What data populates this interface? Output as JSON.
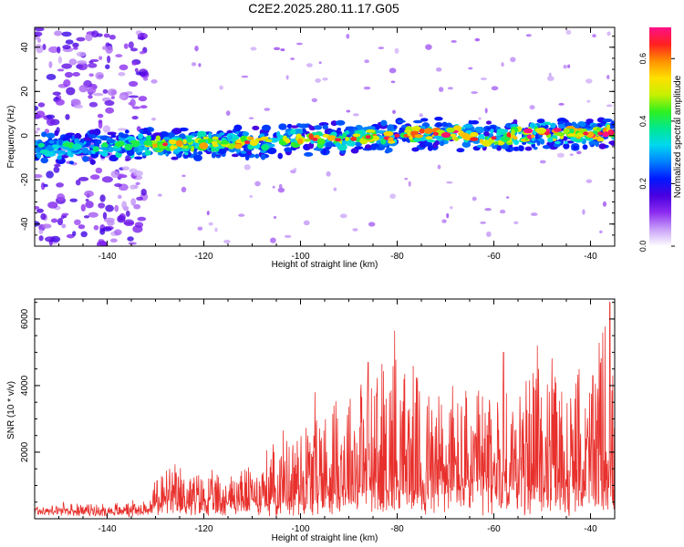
{
  "title": "C2E2.2025.280.11.17.G05",
  "colors": {
    "snr_line": "#e8302c",
    "colormap": [
      "#ffffff",
      "#c8a0f8",
      "#8c2cf0",
      "#4a00e0",
      "#0018ff",
      "#0080ff",
      "#00d8f0",
      "#00e890",
      "#30f020",
      "#c8f000",
      "#ffe000",
      "#ff9000",
      "#ff2020",
      "#ff1088"
    ]
  },
  "chart_data": [
    {
      "type": "heatmap",
      "title": "",
      "xlabel": "Height of straight line (km)",
      "ylabel": "Frequency (Hz)",
      "xlim": [
        -155,
        -35
      ],
      "ylim": [
        -50,
        49
      ],
      "xticks": [
        -140,
        -120,
        -100,
        -80,
        -60,
        -40
      ],
      "xtick_labels": [
        "-140",
        "-120",
        "-100",
        "-80",
        "-60",
        "-40"
      ],
      "yticks": [
        -40,
        -20,
        0,
        20,
        40
      ],
      "ytick_labels": [
        "-40",
        "-20",
        "0",
        "20",
        "40"
      ],
      "colorbar": {
        "label": "Normalized spectral amplitude",
        "range": [
          0,
          0.7
        ],
        "ticks": [
          0.0,
          0.2,
          0.4,
          0.6
        ],
        "tick_labels": [
          "0.0",
          "0.2",
          "0.4",
          "0.6"
        ]
      },
      "ridge": {
        "description": "narrow band of high amplitude near 0 Hz",
        "center_hz": [
          [
            -155,
            -6
          ],
          [
            -130,
            -4
          ],
          [
            -110,
            -3
          ],
          [
            -90,
            -1
          ],
          [
            -80,
            0
          ],
          [
            -70,
            1
          ],
          [
            -60,
            -1
          ],
          [
            -50,
            1
          ],
          [
            -35,
            1
          ]
        ],
        "peak_amplitude": 0.7
      },
      "noise_region": {
        "x_range": [
          -155,
          -132
        ],
        "amplitude": 0.15
      }
    },
    {
      "type": "line",
      "title": "",
      "xlabel": "Height of straight line (km)",
      "ylabel": "SNR (10 * v/v)",
      "xlim": [
        -155,
        -35
      ],
      "ylim": [
        0,
        6600
      ],
      "xticks": [
        -140,
        -120,
        -100,
        -80,
        -60,
        -40
      ],
      "xtick_labels": [
        "-140",
        "-120",
        "-100",
        "-80",
        "-60",
        "-40"
      ],
      "yticks": [
        2000,
        4000,
        6000
      ],
      "ytick_labels": [
        "2000",
        "4000",
        "6000"
      ],
      "series": [
        {
          "name": "SNR",
          "envelope_x": [
            -155,
            -140,
            -131,
            -130,
            -125,
            -120,
            -115,
            -110,
            -105,
            -100,
            -95,
            -90,
            -85,
            -80,
            -75,
            -70,
            -65,
            -60,
            -55,
            -50,
            -45,
            -40,
            -37,
            -35
          ],
          "envelope_max": [
            450,
            450,
            600,
            1600,
            1700,
            1400,
            1500,
            1800,
            2500,
            3300,
            3800,
            4600,
            4600,
            5600,
            4300,
            4500,
            4100,
            4200,
            4400,
            5200,
            4400,
            4800,
            6500,
            4300
          ],
          "baseline": [
            200,
            200,
            250,
            500,
            500,
            500,
            500,
            500,
            600,
            700,
            700,
            800,
            800,
            800,
            800,
            800,
            800,
            800,
            800,
            900,
            900,
            900,
            900,
            800
          ],
          "peaks": [
            {
              "x": -80.5,
              "y": 5650
            },
            {
              "x": -36,
              "y": 6500
            },
            {
              "x": -51,
              "y": 5200
            },
            {
              "x": -97,
              "y": 3800
            },
            {
              "x": -86,
              "y": 4700
            },
            {
              "x": -58,
              "y": 5000
            }
          ]
        }
      ]
    }
  ]
}
